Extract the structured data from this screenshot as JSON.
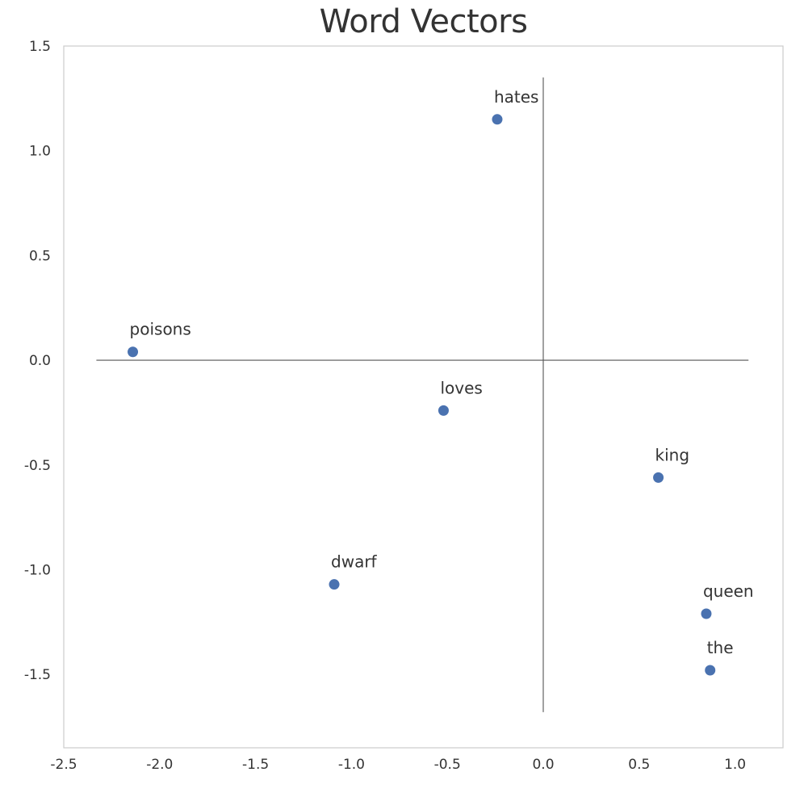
{
  "chart_data": {
    "type": "scatter",
    "title": "Word Vectors",
    "xlabel": "",
    "ylabel": "",
    "xlim": [
      -2.5,
      1.25
    ],
    "ylim": [
      -1.85,
      1.5
    ],
    "x_ticks": [
      -2.5,
      -2.0,
      -1.5,
      -1.0,
      -0.5,
      0.0,
      0.5,
      1.0
    ],
    "x_tick_labels": [
      "-2.5",
      "-2.0",
      "-1.5",
      "-1.0",
      "-0.5",
      "0.0",
      "0.5",
      "1.0"
    ],
    "y_ticks": [
      1.5,
      1.0,
      0.5,
      0.0,
      -0.5,
      -1.0,
      -1.5
    ],
    "y_tick_labels": [
      "1.5",
      "1.0",
      "0.5",
      "0.0",
      "-0.5",
      "-1.0",
      "-1.5"
    ],
    "grid": false,
    "axis_lines": {
      "horizontal": {
        "y": 0.0,
        "x_from": -2.33,
        "x_to": 1.07
      },
      "vertical": {
        "x": 0.0,
        "y_from": -1.68,
        "y_to": 1.35
      }
    },
    "points": [
      {
        "label": "hates",
        "x": -0.24,
        "y": 1.15
      },
      {
        "label": "poisons",
        "x": -2.14,
        "y": 0.04
      },
      {
        "label": "loves",
        "x": -0.52,
        "y": -0.24
      },
      {
        "label": "king",
        "x": 0.6,
        "y": -0.56
      },
      {
        "label": "dwarf",
        "x": -1.09,
        "y": -1.07
      },
      {
        "label": "queen",
        "x": 0.85,
        "y": -1.21
      },
      {
        "label": "the",
        "x": 0.87,
        "y": -1.48
      }
    ],
    "colors": {
      "marker": "#4a72b0",
      "axis_line": "#555555",
      "frame": "#cccccc",
      "text": "#333333"
    }
  }
}
